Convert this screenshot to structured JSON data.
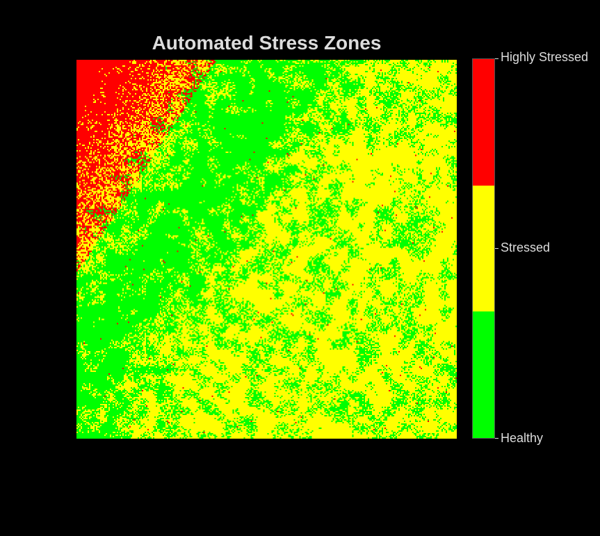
{
  "chart_data": {
    "type": "heatmap",
    "title": "Automated Stress Zones",
    "xlabel": "",
    "ylabel": "",
    "grid": false,
    "axes_visible": false,
    "classes": [
      {
        "name": "Healthy",
        "color": "#00ff00",
        "level": 0
      },
      {
        "name": "Stressed",
        "color": "#ffff00",
        "level": 1
      },
      {
        "name": "Highly Stressed",
        "color": "#ff0000",
        "level": 2
      }
    ],
    "colorbar": {
      "position": "right",
      "ticks": [
        "Highly Stressed",
        "Stressed",
        "Healthy"
      ]
    },
    "pattern": {
      "description": "classified stress map; dense highly-stressed zone in the top-left corner fading through a healthy band into mixed stressed/healthy speckle elsewhere",
      "dominant_class": "Stressed",
      "highly_stressed_region": "top-left",
      "healthy_band": "diagonal from top-center to mid-left"
    }
  }
}
